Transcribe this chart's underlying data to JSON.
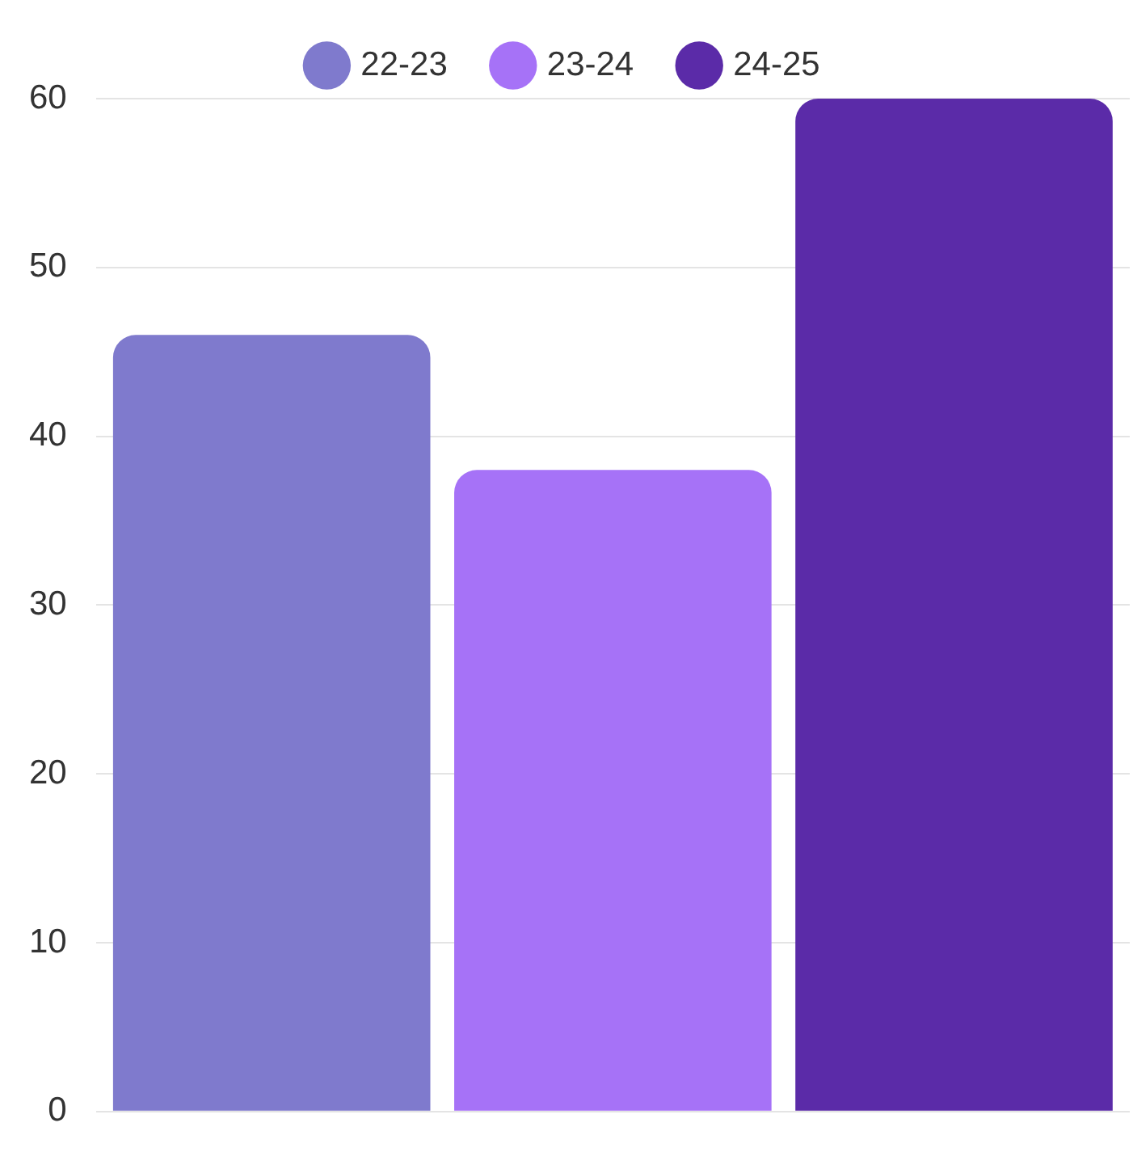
{
  "chart_data": {
    "type": "bar",
    "categories": [
      null
    ],
    "series": [
      {
        "name": "22-23",
        "color": "#7f7acd",
        "values": [
          46
        ]
      },
      {
        "name": "23-24",
        "color": "#a672f7",
        "values": [
          38
        ]
      },
      {
        "name": "24-25",
        "color": "#5b2ba8",
        "values": [
          60
        ]
      }
    ],
    "ylim": [
      0,
      60
    ],
    "yticks": [
      0,
      10,
      20,
      30,
      40,
      50,
      60
    ],
    "grid": "y",
    "legend": "top",
    "tick_labels": "y"
  }
}
